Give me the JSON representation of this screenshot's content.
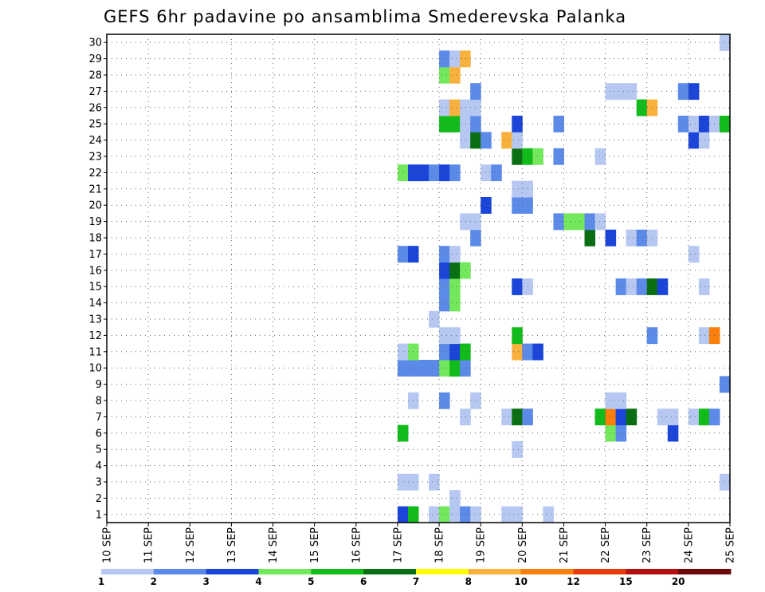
{
  "chart_data": {
    "type": "heatmap",
    "title": "GEFS 6hr padavine po ansamblima Smederevska Palanka",
    "x_labels": [
      "10 SEP",
      "11 SEP",
      "12 SEP",
      "13 SEP",
      "14 SEP",
      "15 SEP",
      "16 SEP",
      "17 SEP",
      "18 SEP",
      "19 SEP",
      "20 SEP",
      "21 SEP",
      "22 SEP",
      "23 SEP",
      "24 SEP",
      "25 SEP"
    ],
    "y_labels": [
      "1",
      "2",
      "3",
      "4",
      "5",
      "6",
      "7",
      "8",
      "9",
      "10",
      "11",
      "12",
      "13",
      "14",
      "15",
      "16",
      "17",
      "18",
      "19",
      "20",
      "21",
      "22",
      "23",
      "24",
      "25",
      "26",
      "27",
      "28",
      "29",
      "30"
    ],
    "grid": true,
    "legend": {
      "position": "bottom",
      "labels": [
        "1",
        "2",
        "3",
        "4",
        "5",
        "6",
        "7",
        "8",
        "10",
        "12",
        "15",
        "20"
      ],
      "colors": [
        "#b6c8f2",
        "#5b8ae8",
        "#1a45d8",
        "#73e85c",
        "#11bb1a",
        "#0a6e12",
        "#ffff00",
        "#f9b13e",
        "#f97e0a",
        "#e83a0c",
        "#b51010",
        "#6b0808"
      ]
    },
    "cells": [
      {
        "day": 17.0,
        "member": 1,
        "level": 3
      },
      {
        "day": 17.25,
        "member": 1,
        "level": 5
      },
      {
        "day": 17.75,
        "member": 1,
        "level": 1
      },
      {
        "day": 18.0,
        "member": 1,
        "level": 4
      },
      {
        "day": 18.25,
        "member": 1,
        "level": 1
      },
      {
        "day": 18.5,
        "member": 1,
        "level": 2
      },
      {
        "day": 18.75,
        "member": 1,
        "level": 1
      },
      {
        "day": 19.5,
        "member": 1,
        "level": 1
      },
      {
        "day": 19.75,
        "member": 1,
        "level": 1
      },
      {
        "day": 20.5,
        "member": 1,
        "level": 1
      },
      {
        "day": 18.25,
        "member": 2,
        "level": 1
      },
      {
        "day": 17.0,
        "member": 3,
        "level": 1
      },
      {
        "day": 17.25,
        "member": 3,
        "level": 1
      },
      {
        "day": 17.75,
        "member": 3,
        "level": 1
      },
      {
        "day": 24.75,
        "member": 3,
        "level": 1
      },
      {
        "day": 19.75,
        "member": 5,
        "level": 1
      },
      {
        "day": 17.0,
        "member": 6,
        "level": 5
      },
      {
        "day": 22.0,
        "member": 6,
        "level": 4
      },
      {
        "day": 22.25,
        "member": 6,
        "level": 2
      },
      {
        "day": 23.5,
        "member": 6,
        "level": 3
      },
      {
        "day": 18.5,
        "member": 7,
        "level": 1
      },
      {
        "day": 19.5,
        "member": 7,
        "level": 1
      },
      {
        "day": 19.75,
        "member": 7,
        "level": 6
      },
      {
        "day": 20.0,
        "member": 7,
        "level": 2
      },
      {
        "day": 21.75,
        "member": 7,
        "level": 5
      },
      {
        "day": 22.0,
        "member": 7,
        "level": 9
      },
      {
        "day": 22.25,
        "member": 7,
        "level": 3
      },
      {
        "day": 22.5,
        "member": 7,
        "level": 6
      },
      {
        "day": 23.25,
        "member": 7,
        "level": 1
      },
      {
        "day": 23.5,
        "member": 7,
        "level": 1
      },
      {
        "day": 24.0,
        "member": 7,
        "level": 1
      },
      {
        "day": 24.25,
        "member": 7,
        "level": 5
      },
      {
        "day": 24.5,
        "member": 7,
        "level": 2
      },
      {
        "day": 17.25,
        "member": 8,
        "level": 1
      },
      {
        "day": 18.0,
        "member": 8,
        "level": 2
      },
      {
        "day": 18.75,
        "member": 8,
        "level": 1
      },
      {
        "day": 22.0,
        "member": 8,
        "level": 1
      },
      {
        "day": 22.25,
        "member": 8,
        "level": 1
      },
      {
        "day": 24.75,
        "member": 9,
        "level": 2
      },
      {
        "day": 17.0,
        "member": 10,
        "level": 2
      },
      {
        "day": 17.25,
        "member": 10,
        "level": 2
      },
      {
        "day": 17.5,
        "member": 10,
        "level": 2
      },
      {
        "day": 17.75,
        "member": 10,
        "level": 2
      },
      {
        "day": 18.0,
        "member": 10,
        "level": 4
      },
      {
        "day": 18.25,
        "member": 10,
        "level": 5
      },
      {
        "day": 18.5,
        "member": 10,
        "level": 2
      },
      {
        "day": 17.0,
        "member": 11,
        "level": 1
      },
      {
        "day": 17.25,
        "member": 11,
        "level": 4
      },
      {
        "day": 18.0,
        "member": 11,
        "level": 2
      },
      {
        "day": 18.25,
        "member": 11,
        "level": 3
      },
      {
        "day": 18.5,
        "member": 11,
        "level": 5
      },
      {
        "day": 19.75,
        "member": 11,
        "level": 8
      },
      {
        "day": 20.0,
        "member": 11,
        "level": 2
      },
      {
        "day": 20.25,
        "member": 11,
        "level": 3
      },
      {
        "day": 18.0,
        "member": 12,
        "level": 1
      },
      {
        "day": 18.25,
        "member": 12,
        "level": 1
      },
      {
        "day": 19.75,
        "member": 12,
        "level": 5
      },
      {
        "day": 23.0,
        "member": 12,
        "level": 2
      },
      {
        "day": 24.25,
        "member": 12,
        "level": 1
      },
      {
        "day": 24.5,
        "member": 12,
        "level": 9
      },
      {
        "day": 17.75,
        "member": 13,
        "level": 1
      },
      {
        "day": 18.0,
        "member": 14,
        "level": 2
      },
      {
        "day": 18.25,
        "member": 14,
        "level": 4
      },
      {
        "day": 18.0,
        "member": 15,
        "level": 2
      },
      {
        "day": 18.25,
        "member": 15,
        "level": 4
      },
      {
        "day": 19.75,
        "member": 15,
        "level": 3
      },
      {
        "day": 20.0,
        "member": 15,
        "level": 1
      },
      {
        "day": 22.25,
        "member": 15,
        "level": 2
      },
      {
        "day": 22.5,
        "member": 15,
        "level": 1
      },
      {
        "day": 22.75,
        "member": 15,
        "level": 2
      },
      {
        "day": 23.0,
        "member": 15,
        "level": 6
      },
      {
        "day": 23.25,
        "member": 15,
        "level": 3
      },
      {
        "day": 24.25,
        "member": 15,
        "level": 1
      },
      {
        "day": 18.0,
        "member": 16,
        "level": 3
      },
      {
        "day": 18.25,
        "member": 16,
        "level": 6
      },
      {
        "day": 18.5,
        "member": 16,
        "level": 4
      },
      {
        "day": 17.0,
        "member": 17,
        "level": 2
      },
      {
        "day": 17.25,
        "member": 17,
        "level": 3
      },
      {
        "day": 18.0,
        "member": 17,
        "level": 2
      },
      {
        "day": 18.25,
        "member": 17,
        "level": 1
      },
      {
        "day": 24.0,
        "member": 17,
        "level": 1
      },
      {
        "day": 18.75,
        "member": 18,
        "level": 2
      },
      {
        "day": 21.5,
        "member": 18,
        "level": 6
      },
      {
        "day": 22.0,
        "member": 18,
        "level": 3
      },
      {
        "day": 22.5,
        "member": 18,
        "level": 1
      },
      {
        "day": 22.75,
        "member": 18,
        "level": 2
      },
      {
        "day": 23.0,
        "member": 18,
        "level": 1
      },
      {
        "day": 18.5,
        "member": 19,
        "level": 1
      },
      {
        "day": 18.75,
        "member": 19,
        "level": 1
      },
      {
        "day": 20.75,
        "member": 19,
        "level": 2
      },
      {
        "day": 21.0,
        "member": 19,
        "level": 4
      },
      {
        "day": 21.25,
        "member": 19,
        "level": 4
      },
      {
        "day": 21.5,
        "member": 19,
        "level": 2
      },
      {
        "day": 21.75,
        "member": 19,
        "level": 1
      },
      {
        "day": 19.0,
        "member": 20,
        "level": 3
      },
      {
        "day": 19.75,
        "member": 20,
        "level": 2
      },
      {
        "day": 20.0,
        "member": 20,
        "level": 2
      },
      {
        "day": 19.75,
        "member": 21,
        "level": 1
      },
      {
        "day": 20.0,
        "member": 21,
        "level": 1
      },
      {
        "day": 17.0,
        "member": 22,
        "level": 4
      },
      {
        "day": 17.25,
        "member": 22,
        "level": 3
      },
      {
        "day": 17.5,
        "member": 22,
        "level": 3
      },
      {
        "day": 17.75,
        "member": 22,
        "level": 2
      },
      {
        "day": 18.0,
        "member": 22,
        "level": 3
      },
      {
        "day": 18.25,
        "member": 22,
        "level": 2
      },
      {
        "day": 19.0,
        "member": 22,
        "level": 1
      },
      {
        "day": 19.25,
        "member": 22,
        "level": 2
      },
      {
        "day": 19.75,
        "member": 23,
        "level": 6
      },
      {
        "day": 20.0,
        "member": 23,
        "level": 5
      },
      {
        "day": 20.25,
        "member": 23,
        "level": 4
      },
      {
        "day": 20.75,
        "member": 23,
        "level": 2
      },
      {
        "day": 21.75,
        "member": 23,
        "level": 1
      },
      {
        "day": 18.5,
        "member": 24,
        "level": 1
      },
      {
        "day": 18.75,
        "member": 24,
        "level": 6
      },
      {
        "day": 19.0,
        "member": 24,
        "level": 2
      },
      {
        "day": 19.5,
        "member": 24,
        "level": 8
      },
      {
        "day": 19.75,
        "member": 24,
        "level": 1
      },
      {
        "day": 24.0,
        "member": 24,
        "level": 3
      },
      {
        "day": 24.25,
        "member": 24,
        "level": 1
      },
      {
        "day": 18.0,
        "member": 25,
        "level": 5
      },
      {
        "day": 18.25,
        "member": 25,
        "level": 5
      },
      {
        "day": 18.5,
        "member": 25,
        "level": 1
      },
      {
        "day": 18.75,
        "member": 25,
        "level": 2
      },
      {
        "day": 19.75,
        "member": 25,
        "level": 3
      },
      {
        "day": 20.75,
        "member": 25,
        "level": 2
      },
      {
        "day": 23.75,
        "member": 25,
        "level": 2
      },
      {
        "day": 24.0,
        "member": 25,
        "level": 1
      },
      {
        "day": 24.25,
        "member": 25,
        "level": 3
      },
      {
        "day": 24.5,
        "member": 25,
        "level": 1
      },
      {
        "day": 24.75,
        "member": 25,
        "level": 5
      },
      {
        "day": 18.0,
        "member": 26,
        "level": 1
      },
      {
        "day": 18.25,
        "member": 26,
        "level": 8
      },
      {
        "day": 18.5,
        "member": 26,
        "level": 1
      },
      {
        "day": 18.75,
        "member": 26,
        "level": 1
      },
      {
        "day": 22.75,
        "member": 26,
        "level": 5
      },
      {
        "day": 23.0,
        "member": 26,
        "level": 8
      },
      {
        "day": 18.75,
        "member": 27,
        "level": 2
      },
      {
        "day": 22.0,
        "member": 27,
        "level": 1
      },
      {
        "day": 22.25,
        "member": 27,
        "level": 1
      },
      {
        "day": 22.5,
        "member": 27,
        "level": 1
      },
      {
        "day": 23.75,
        "member": 27,
        "level": 2
      },
      {
        "day": 24.0,
        "member": 27,
        "level": 3
      },
      {
        "day": 18.0,
        "member": 28,
        "level": 4
      },
      {
        "day": 18.25,
        "member": 28,
        "level": 8
      },
      {
        "day": 18.0,
        "member": 29,
        "level": 2
      },
      {
        "day": 18.25,
        "member": 29,
        "level": 1
      },
      {
        "day": 18.5,
        "member": 29,
        "level": 8
      },
      {
        "day": 24.75,
        "member": 30,
        "level": 1
      }
    ]
  }
}
